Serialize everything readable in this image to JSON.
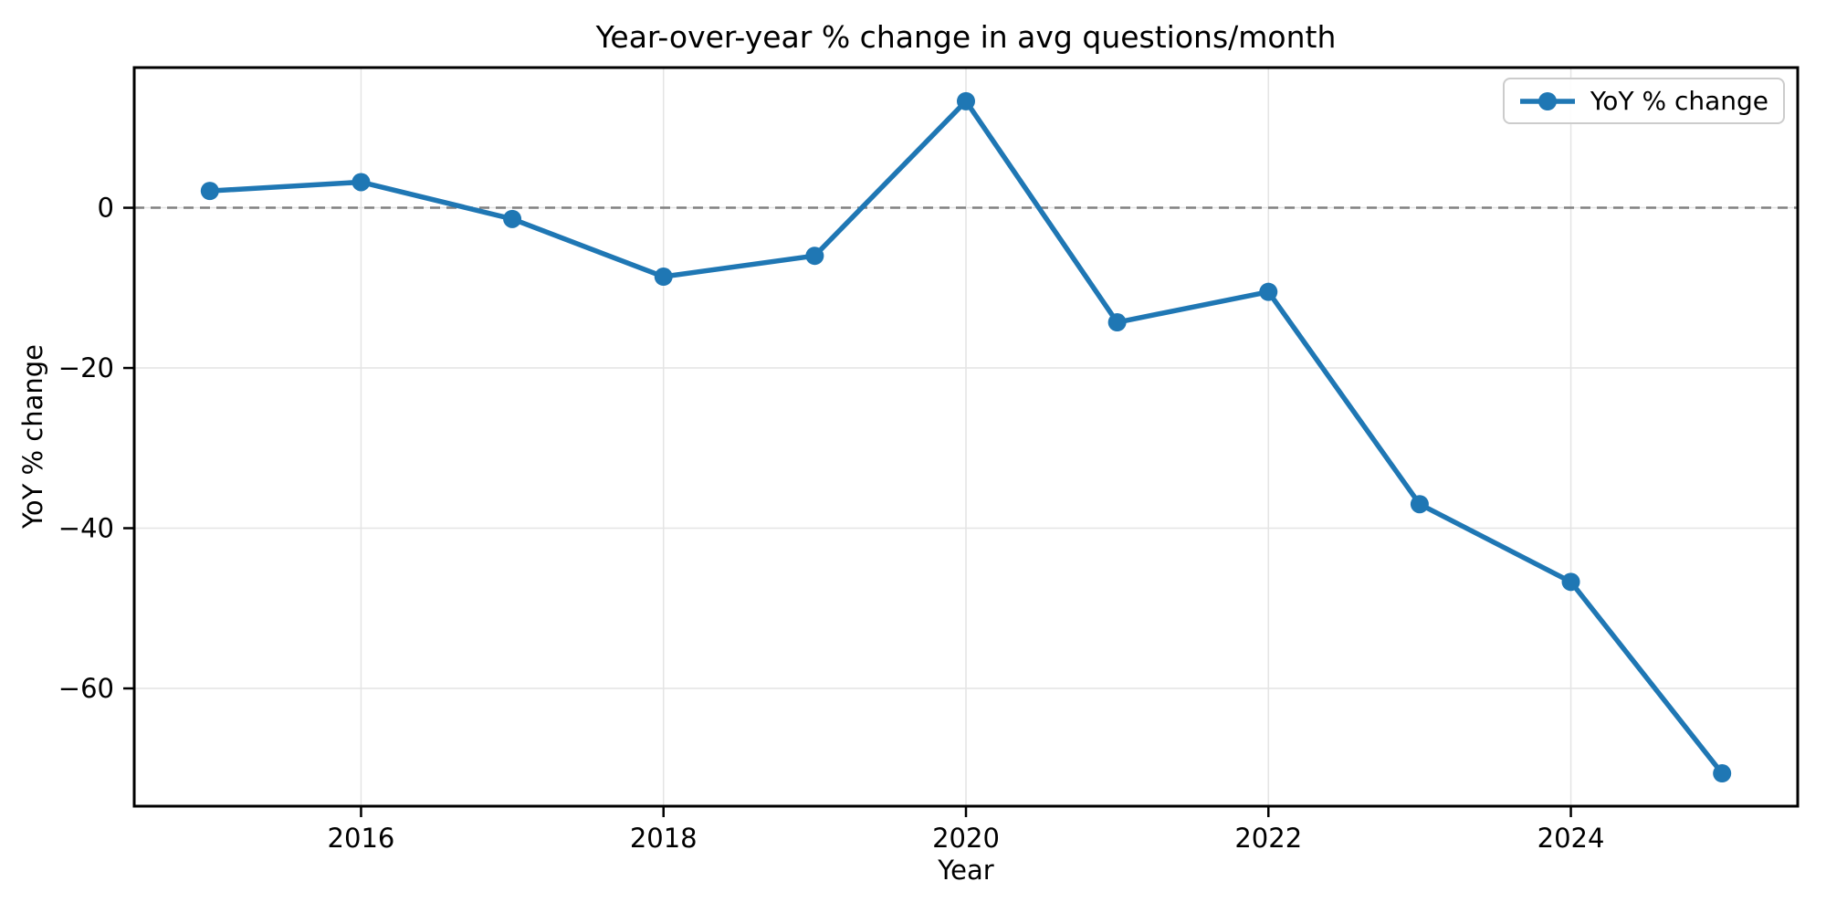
{
  "figure": {
    "title": "Year-over-year % change in avg questions/month",
    "xlabel": "Year",
    "ylabel": "YoY % change"
  },
  "chart_data": {
    "type": "line",
    "title": "Year-over-year % change in avg questions/month",
    "xlabel": "Year",
    "ylabel": "YoY % change",
    "x": [
      2015,
      2016,
      2017,
      2018,
      2019,
      2020,
      2021,
      2022,
      2023,
      2024,
      2025
    ],
    "series": [
      {
        "name": "YoY % change",
        "color": "#1f77b4",
        "marker": "circle",
        "values": [
          2.1,
          3.2,
          -1.4,
          -8.6,
          -6.0,
          13.3,
          -14.3,
          -10.5,
          -37.0,
          -46.7,
          -70.6
        ]
      }
    ],
    "xticks": [
      2016,
      2018,
      2020,
      2022,
      2024
    ],
    "yticks": [
      0,
      -20,
      -40,
      -60
    ],
    "xlim": [
      2014.5,
      2025.5
    ],
    "ylim": [
      -74.7,
      17.5
    ],
    "grid": true,
    "legend_position": "upper right",
    "zero_line": {
      "y": 0,
      "style": "dashed",
      "color": "#808080"
    }
  },
  "colors": {
    "series": "#1f77b4",
    "grid": "#e4e4e4",
    "zero_line": "#808080",
    "spine": "#000000",
    "legend_border": "#cccccc",
    "text": "#000000"
  }
}
